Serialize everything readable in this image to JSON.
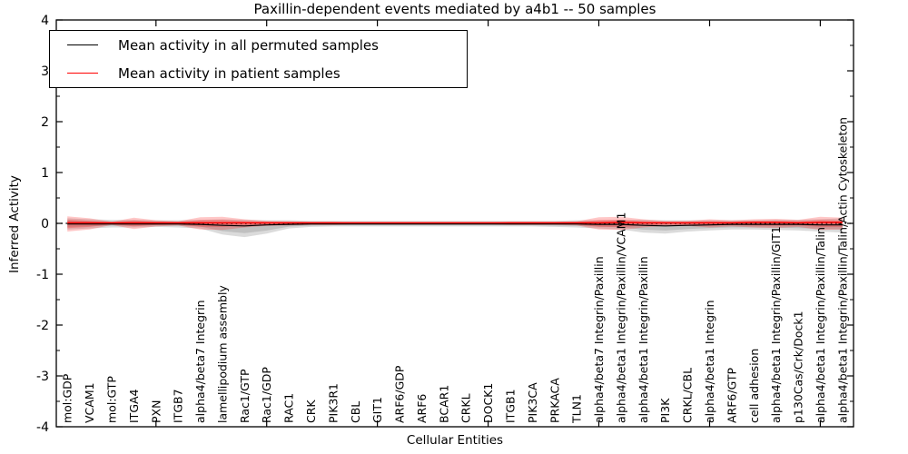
{
  "figure": {
    "title": "Paxillin-dependent events mediated by a4b1 -- 50 samples",
    "xlabel": "Cellular Entities",
    "ylabel": "Inferred Activity"
  },
  "legend": {
    "items": [
      {
        "label": "Mean activity in all permuted samples",
        "color": "#000000"
      },
      {
        "label": "Mean activity in patient samples",
        "color": "#ff0000"
      }
    ],
    "position": "upper left"
  },
  "chart_data": {
    "type": "line",
    "title": "Paxillin-dependent events mediated by a4b1 -- 50 samples",
    "xlabel": "Cellular Entities",
    "ylabel": "Inferred Activity",
    "ylim": [
      -4,
      4
    ],
    "yticks": [
      -4,
      -3,
      -2,
      -1,
      0,
      1,
      2,
      3,
      4
    ],
    "ytick_labels": [
      "-4",
      "-3",
      "-2",
      "-1",
      "0",
      "1",
      "2",
      "3",
      "4"
    ],
    "y_minor_step": 0.5,
    "xticks_major": [
      5,
      10,
      15,
      20,
      25,
      30,
      35
    ],
    "grid": false,
    "legend_position": "upper left",
    "categories": [
      "mol:GDP",
      "VCAM1",
      "mol:GTP",
      "ITGA4",
      "PXN",
      "ITGB7",
      "alpha4/beta7 Integrin",
      "lamellipodium assembly",
      "Rac1/GTP",
      "Rac1/GDP",
      "RAC1",
      "CRK",
      "PIK3R1",
      "CBL",
      "GIT1",
      "ARF6/GDP",
      "ARF6",
      "BCAR1",
      "CRKL",
      "DOCK1",
      "ITGB1",
      "PIK3CA",
      "PRKACA",
      "TLN1",
      "alpha4/beta7 Integrin/Paxillin",
      "alpha4/beta1 Integrin/Paxillin/VCAM1",
      "alpha4/beta1 Integrin/Paxillin",
      "PI3K",
      "CRKL/CBL",
      "alpha4/beta1 Integrin",
      "ARF6/GTP",
      "cell adhesion",
      "alpha4/beta1 Integrin/Paxillin/GIT1",
      "p130Cas/Crk/Dock1",
      "alpha4/beta1 Integrin/Paxillin/Talin",
      "alpha4/beta1 Integrin/Paxillin/Talin/Actin Cytoskeleton"
    ],
    "series": [
      {
        "name": "Mean activity in all permuted samples",
        "color": "#000000",
        "style": "solid",
        "values": [
          -0.01,
          -0.01,
          -0.01,
          -0.01,
          -0.01,
          -0.01,
          -0.02,
          -0.04,
          -0.05,
          -0.03,
          -0.02,
          -0.01,
          -0.01,
          -0.01,
          -0.01,
          -0.01,
          -0.01,
          -0.01,
          -0.01,
          -0.01,
          -0.01,
          -0.01,
          -0.01,
          -0.01,
          -0.02,
          -0.02,
          -0.04,
          -0.05,
          -0.04,
          -0.03,
          -0.02,
          -0.02,
          -0.02,
          -0.02,
          -0.03,
          -0.03
        ]
      },
      {
        "name": "Mean activity in patient samples",
        "color": "#ff0000",
        "style": "solid",
        "values": [
          0.01,
          0.01,
          0.01,
          0.01,
          0.01,
          0.01,
          0.01,
          0.01,
          0.01,
          0.01,
          0.01,
          0.01,
          0.01,
          0.01,
          0.01,
          0.01,
          0.01,
          0.01,
          0.01,
          0.01,
          0.01,
          0.01,
          0.01,
          0.01,
          0.01,
          0.02,
          0.01,
          0.01,
          0.01,
          0.01,
          0.01,
          0.02,
          0.02,
          0.01,
          0.02,
          0.02
        ]
      }
    ],
    "zero_reference_line": {
      "value": 0,
      "color": "#000000",
      "style": "dotted"
    },
    "bands": [
      {
        "name": "permuted-samples-range",
        "color": "rgba(110,110,110,0.25)",
        "upper": [
          0.1,
          0.08,
          0.07,
          0.07,
          0.06,
          0.06,
          0.07,
          0.08,
          0.07,
          0.06,
          0.06,
          0.05,
          0.05,
          0.05,
          0.05,
          0.05,
          0.05,
          0.05,
          0.05,
          0.05,
          0.05,
          0.05,
          0.05,
          0.06,
          0.06,
          0.07,
          0.07,
          0.06,
          0.06,
          0.06,
          0.06,
          0.06,
          0.07,
          0.07,
          0.08,
          0.1
        ],
        "lower": [
          -0.12,
          -0.1,
          -0.08,
          -0.08,
          -0.07,
          -0.08,
          -0.1,
          -0.22,
          -0.27,
          -0.2,
          -0.1,
          -0.07,
          -0.06,
          -0.06,
          -0.06,
          -0.06,
          -0.06,
          -0.06,
          -0.06,
          -0.06,
          -0.06,
          -0.06,
          -0.07,
          -0.08,
          -0.1,
          -0.12,
          -0.18,
          -0.2,
          -0.16,
          -0.14,
          -0.12,
          -0.12,
          -0.13,
          -0.14,
          -0.16,
          -0.18
        ]
      },
      {
        "name": "patient-samples-range",
        "color": "rgba(255,0,0,0.22)",
        "upper": [
          0.14,
          0.1,
          0.03,
          0.11,
          0.06,
          0.04,
          0.12,
          0.13,
          0.08,
          0.05,
          0.04,
          0.03,
          0.03,
          0.02,
          0.02,
          0.02,
          0.02,
          0.02,
          0.02,
          0.02,
          0.03,
          0.03,
          0.03,
          0.04,
          0.12,
          0.13,
          0.08,
          0.05,
          0.05,
          0.08,
          0.06,
          0.08,
          0.09,
          0.07,
          0.13,
          0.11
        ],
        "lower": [
          -0.16,
          -0.12,
          -0.03,
          -0.11,
          -0.06,
          -0.04,
          -0.12,
          -0.13,
          -0.08,
          -0.05,
          -0.04,
          -0.03,
          -0.03,
          -0.02,
          -0.02,
          -0.02,
          -0.02,
          -0.02,
          -0.02,
          -0.02,
          -0.03,
          -0.03,
          -0.03,
          -0.04,
          -0.12,
          -0.13,
          -0.08,
          -0.05,
          -0.05,
          -0.08,
          -0.06,
          -0.08,
          -0.09,
          -0.07,
          -0.13,
          -0.12
        ]
      }
    ]
  }
}
